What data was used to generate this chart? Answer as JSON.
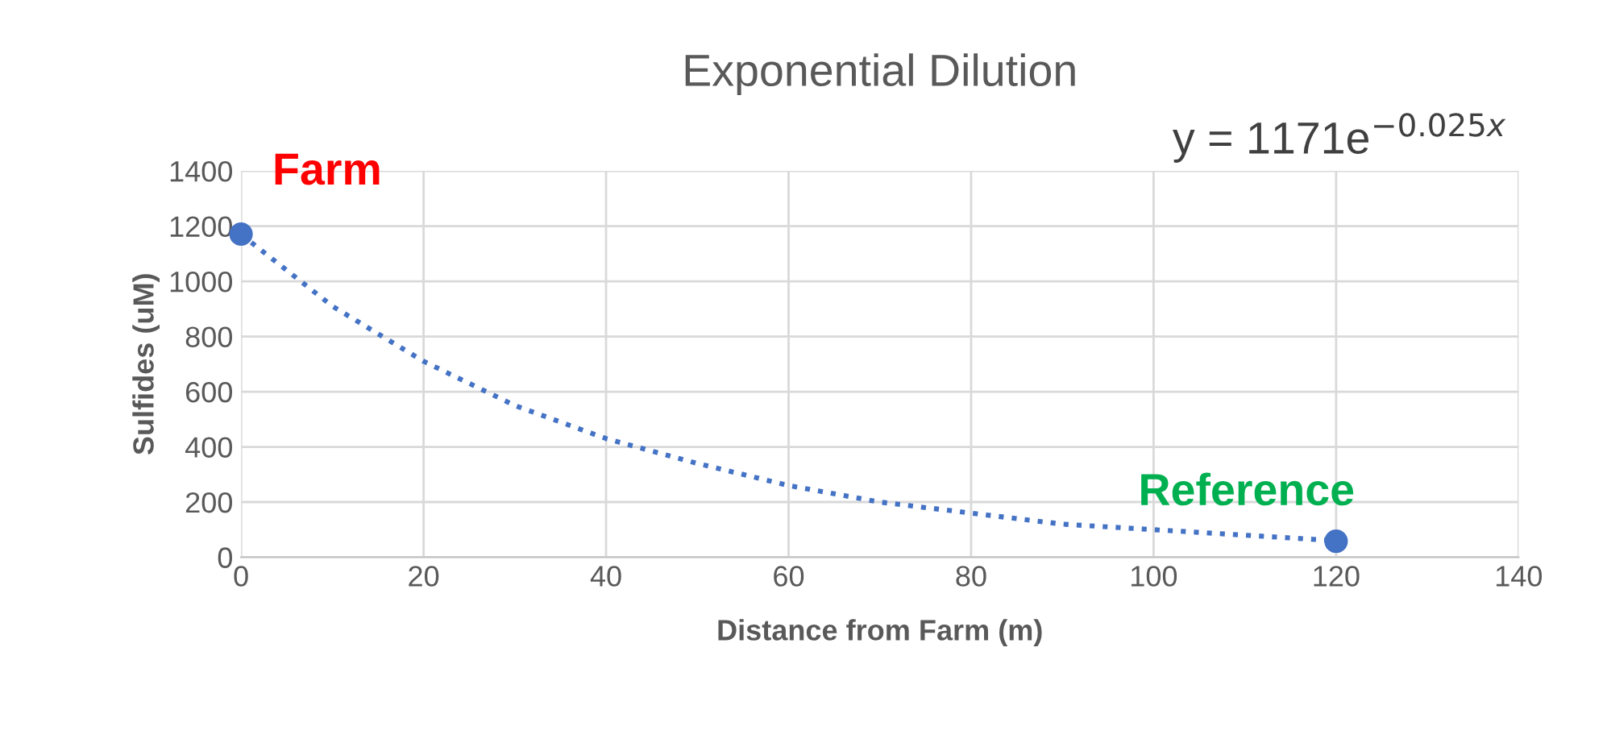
{
  "chart_data": {
    "type": "scatter",
    "title": "Exponential Dilution",
    "xlabel": "Distance from Farm (m)",
    "ylabel": "Sulfides (uM)",
    "xlim": [
      0,
      140
    ],
    "xticks": [
      0,
      20,
      40,
      60,
      80,
      100,
      120,
      140
    ],
    "ylim": [
      0,
      1400
    ],
    "yticks": [
      0,
      200,
      400,
      600,
      800,
      1000,
      1200,
      1400
    ],
    "grid": true,
    "series": [
      {
        "color": "#4472c4",
        "x": [
          0,
          120
        ],
        "values": [
          1171,
          58
        ],
        "marker": "circle"
      },
      {
        "type": "line",
        "color": "#4472c4",
        "line_style": "dotted",
        "x": [
          0,
          10,
          20,
          30,
          40,
          50,
          60,
          70,
          80,
          90,
          100,
          110,
          120
        ],
        "values": [
          1170,
          910,
          710,
          550,
          430,
          340,
          260,
          200,
          160,
          120,
          100,
          80,
          60
        ]
      }
    ],
    "annotations": [
      {
        "text": "Farm",
        "x": 0,
        "y": 1171
      },
      {
        "text": "Reference",
        "x": 120,
        "y": 58
      },
      "y = 1171e$^{−0.025x}$"
    ]
  }
}
